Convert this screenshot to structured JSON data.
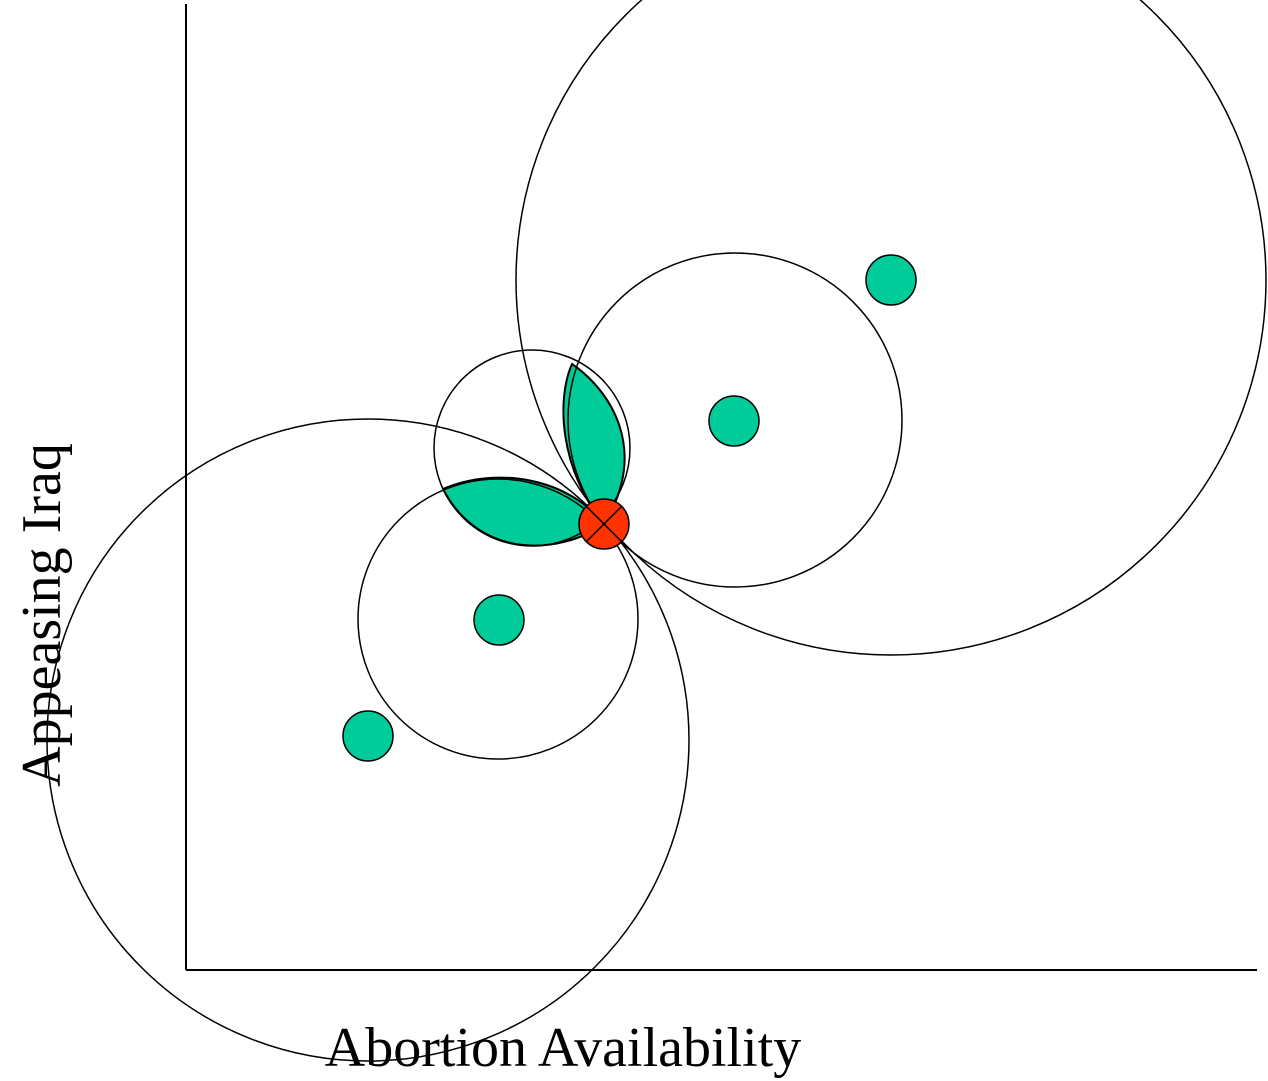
{
  "axes": {
    "x_label": "Abortion Availability",
    "y_label": "Appeasing Iraq"
  }
}
